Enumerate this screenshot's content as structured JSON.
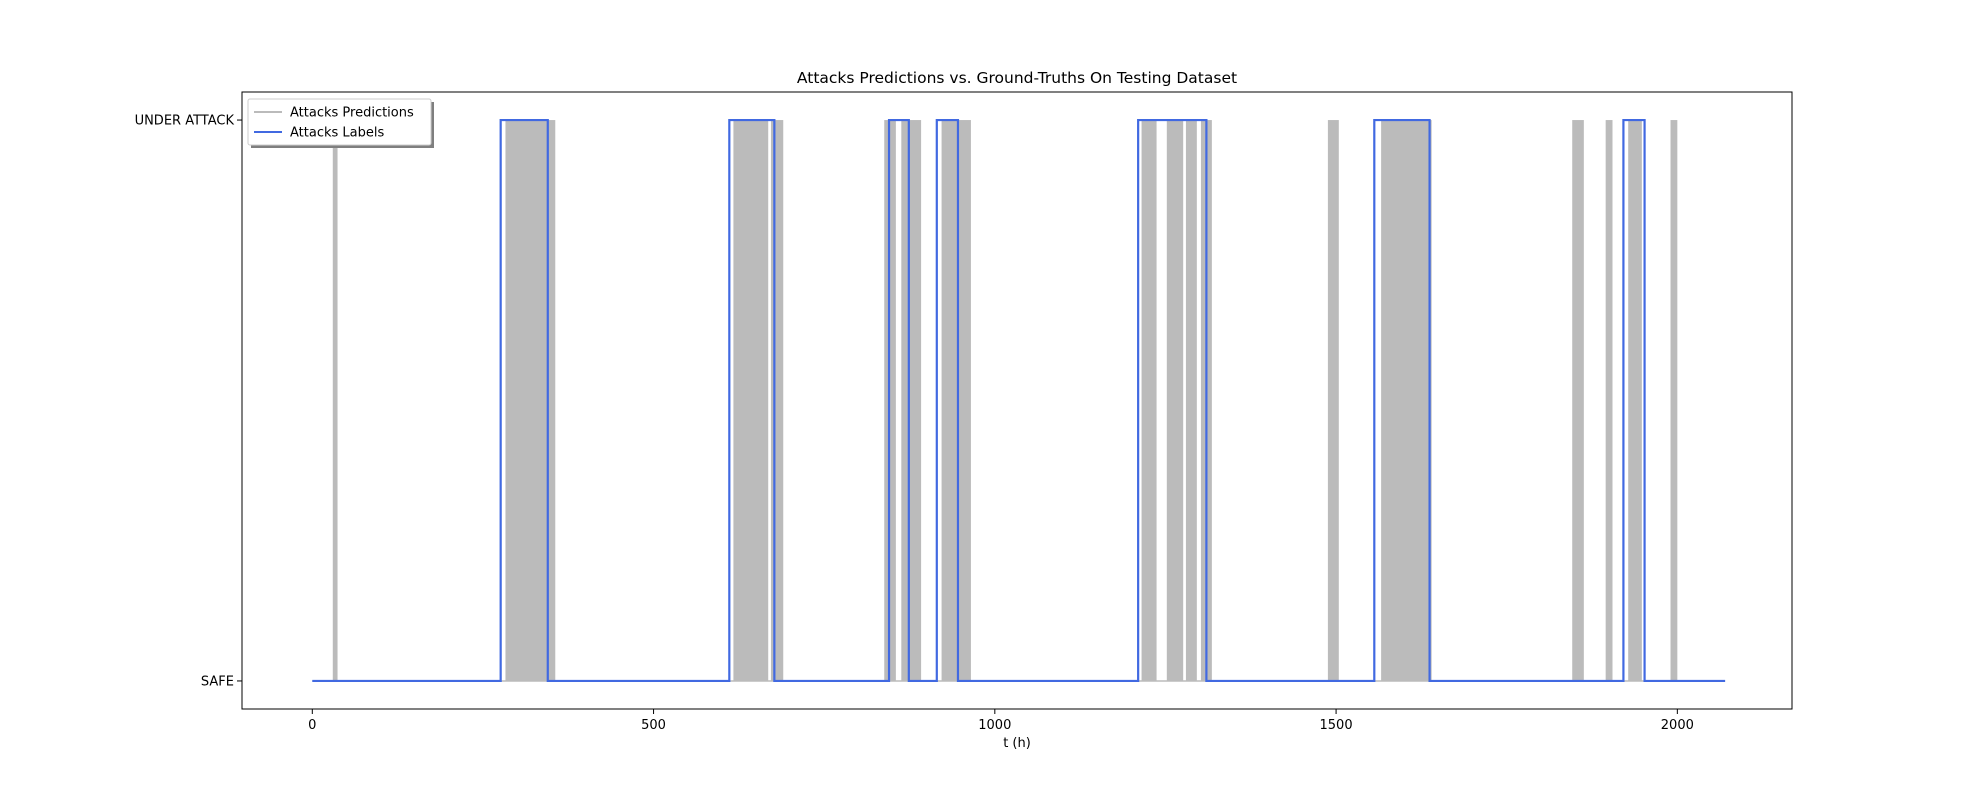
{
  "chart_data": {
    "type": "line",
    "title": "Attacks Predictions vs. Ground-Truths On Testing Dataset",
    "xlabel": "t (h)",
    "ylabel": "",
    "xlim": [
      -103,
      2168
    ],
    "ylim": [
      -0.05,
      1.05
    ],
    "x_ticks": [
      0,
      500,
      1000,
      1500,
      2000
    ],
    "y_ticks": [
      {
        "value": 0,
        "label": "SAFE"
      },
      {
        "value": 1,
        "label": "UNDER ATTACK"
      }
    ],
    "grid": false,
    "legend_position": "upper left",
    "series": [
      {
        "name": "Attacks Predictions",
        "color": "#bbbbbb",
        "kind": "binary-intervals",
        "attack_intervals": [
          [
            30,
            37
          ],
          [
            283,
            356
          ],
          [
            617,
            668
          ],
          [
            672,
            690
          ],
          [
            838,
            855
          ],
          [
            863,
            892
          ],
          [
            922,
            965
          ],
          [
            1215,
            1237
          ],
          [
            1252,
            1276
          ],
          [
            1280,
            1296
          ],
          [
            1302,
            1318
          ],
          [
            1488,
            1504
          ],
          [
            1566,
            1640
          ],
          [
            1846,
            1863
          ],
          [
            1895,
            1905
          ],
          [
            1928,
            1948
          ],
          [
            1990,
            2000
          ]
        ]
      },
      {
        "name": "Attacks Labels",
        "color": "#4169e1",
        "kind": "binary-intervals",
        "x_range": [
          0,
          2070
        ],
        "attack_intervals": [
          [
            276,
            345
          ],
          [
            611,
            677
          ],
          [
            845,
            874
          ],
          [
            915,
            946
          ],
          [
            1210,
            1310
          ],
          [
            1556,
            1637
          ],
          [
            1921,
            1952
          ]
        ]
      }
    ]
  }
}
